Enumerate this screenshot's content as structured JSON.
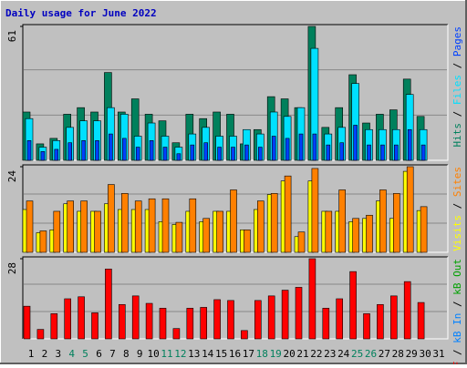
{
  "title": "Daily usage for June 2022",
  "chart_data": [
    {
      "type": "bar",
      "ylim": [
        0,
        61
      ],
      "yticks": [
        61
      ],
      "series": [
        {
          "name": "Hits",
          "color": "#00805c",
          "values": [
            22,
            7.5,
            10,
            21,
            24,
            22,
            40,
            22,
            28,
            21,
            18,
            8,
            21,
            19,
            22,
            21,
            7.5,
            14,
            29,
            28,
            24,
            61,
            15,
            24,
            39,
            17,
            21,
            23,
            37,
            20,
            null
          ]
        },
        {
          "name": "Files",
          "color": "#00e0ff",
          "values": [
            19,
            6,
            9,
            15,
            18,
            18,
            24,
            21,
            11,
            17,
            11,
            6,
            12,
            15,
            11,
            11,
            14,
            12,
            22,
            20,
            24,
            51,
            12,
            15,
            35,
            14,
            14,
            14,
            30,
            14,
            null
          ]
        },
        {
          "name": "Pages",
          "color": "#0040ff",
          "values": [
            9,
            4,
            5,
            8,
            9,
            9,
            12,
            10,
            6,
            9,
            6,
            3,
            7,
            8,
            6,
            6,
            7,
            6,
            11,
            10,
            12,
            12,
            7,
            8,
            16,
            7,
            7,
            7,
            14,
            7,
            null
          ]
        }
      ]
    },
    {
      "type": "bar",
      "ylim": [
        0,
        24
      ],
      "yticks": [
        24
      ],
      "series": [
        {
          "name": "Visits",
          "color": "#ffff00",
          "values": [
            12,
            5.5,
            6.3,
            13.6,
            11.5,
            11.5,
            13.6,
            12,
            12,
            12,
            8.6,
            7.8,
            11.5,
            8.6,
            11.5,
            11.5,
            6.3,
            12,
            16.2,
            20,
            4.4,
            20,
            11.5,
            11.5,
            8.6,
            9.5,
            14.4,
            9.5,
            22.7,
            11.7,
            null
          ]
        },
        {
          "name": "Sites",
          "color": "#ff8000",
          "values": [
            14.4,
            6,
            11.5,
            14.4,
            14.4,
            11.5,
            19,
            16.5,
            14.4,
            15,
            15,
            8.4,
            15,
            9.5,
            11.5,
            17.5,
            6.3,
            14.4,
            16.5,
            21.4,
            5.7,
            23.5,
            11.5,
            17.5,
            9.5,
            10.4,
            17.5,
            16.5,
            24,
            12.8,
            null
          ]
        }
      ]
    },
    {
      "type": "bar",
      "ylim": [
        0,
        28
      ],
      "yticks": [
        28
      ],
      "categories": [
        "1",
        "2",
        "3",
        "4",
        "5",
        "6",
        "7",
        "8",
        "9",
        "10",
        "11",
        "12",
        "13",
        "14",
        "15",
        "16",
        "17",
        "18",
        "19",
        "20",
        "21",
        "22",
        "23",
        "24",
        "25",
        "26",
        "27",
        "28",
        "29",
        "30",
        "31"
      ],
      "category_colors": [
        "#000000",
        "#000000",
        "#000000",
        "#00805c",
        "#00805c",
        "#000000",
        "#000000",
        "#000000",
        "#000000",
        "#000000",
        "#00805c",
        "#00805c",
        "#000000",
        "#000000",
        "#000000",
        "#000000",
        "#000000",
        "#00805c",
        "#00805c",
        "#000000",
        "#000000",
        "#000000",
        "#000000",
        "#000000",
        "#00805c",
        "#00805c",
        "#000000",
        "#000000",
        "#000000",
        "#000000",
        "#000000"
      ],
      "series": [
        {
          "name": "kB F",
          "color": "#ff0000",
          "values": [
            11.4,
            3.3,
            8.8,
            14,
            14.7,
            9.1,
            24.4,
            12,
            15,
            12.4,
            10.7,
            3.6,
            10.7,
            11,
            13.7,
            13.4,
            2.9,
            13.4,
            15,
            17,
            18,
            28,
            10.7,
            14,
            23.5,
            8.8,
            12,
            15,
            20,
            12.7,
            null
          ]
        },
        {
          "name": "kB In",
          "color": "#0080ff",
          "values": [
            null,
            null,
            null,
            null,
            null,
            null,
            null,
            null,
            null,
            null,
            null,
            null,
            null,
            null,
            null,
            null,
            null,
            null,
            null,
            null,
            null,
            null,
            null,
            null,
            null,
            null,
            null,
            null,
            null,
            null,
            null
          ]
        },
        {
          "name": "kB Out",
          "color": "#00a000",
          "values": [
            null,
            null,
            null,
            null,
            null,
            null,
            null,
            null,
            null,
            null,
            null,
            null,
            null,
            null,
            null,
            null,
            null,
            null,
            null,
            null,
            null,
            null,
            null,
            null,
            null,
            null,
            null,
            null,
            null,
            null,
            null
          ]
        }
      ]
    }
  ]
}
